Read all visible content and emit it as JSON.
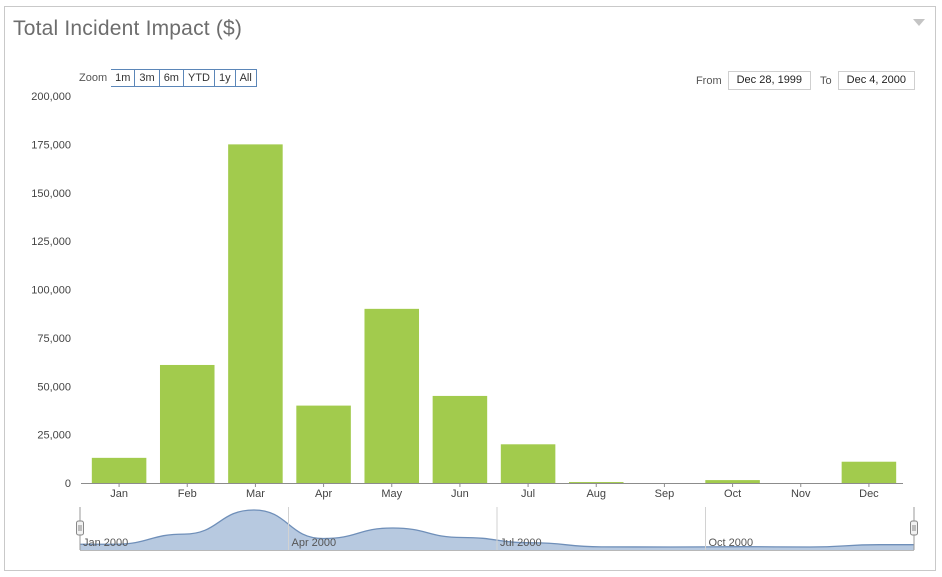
{
  "title": "Total Incident Impact ($)",
  "zoom": {
    "label": "Zoom",
    "buttons": [
      "1m",
      "3m",
      "6m",
      "YTD",
      "1y",
      "All"
    ]
  },
  "range": {
    "from_label": "From",
    "from_value": "Dec 28, 1999",
    "to_label": "To",
    "to_value": "Dec 4, 2000"
  },
  "colors": {
    "bar": "#a2cb4d",
    "navigator_fill": "#b7c9e0",
    "navigator_line": "#6f8fb9",
    "axis": "#555555"
  },
  "chart_data": {
    "type": "bar",
    "title": "Total Incident Impact ($)",
    "categories": [
      "Jan",
      "Feb",
      "Mar",
      "Apr",
      "May",
      "Jun",
      "Jul",
      "Aug",
      "Sep",
      "Oct",
      "Nov",
      "Dec"
    ],
    "values": [
      13000,
      61000,
      175000,
      40000,
      90000,
      45000,
      20000,
      500,
      0,
      1500,
      0,
      11000
    ],
    "ylim": [
      0,
      200000
    ],
    "yticks": [
      "0",
      "25,000",
      "50,000",
      "75,000",
      "100,000",
      "125,000",
      "150,000",
      "175,000",
      "200,000"
    ],
    "ytick_values": [
      0,
      25000,
      50000,
      75000,
      100000,
      125000,
      150000,
      175000,
      200000
    ],
    "grid": false,
    "navigator": {
      "labels": [
        "Jan 2000",
        "Apr 2000",
        "Jul 2000",
        "Oct 2000"
      ]
    }
  }
}
